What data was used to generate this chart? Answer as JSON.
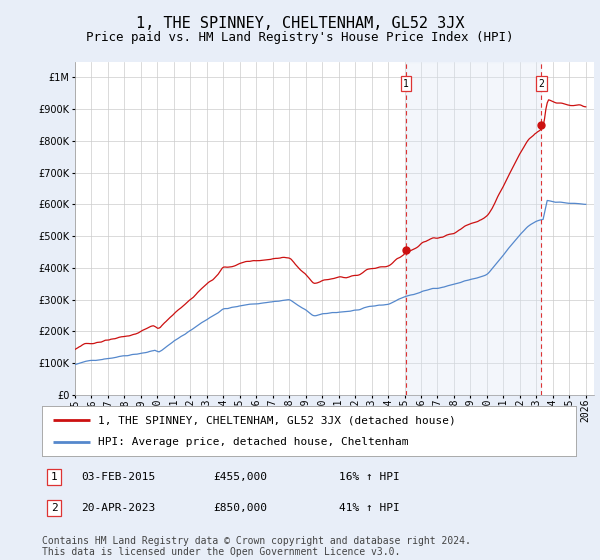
{
  "title": "1, THE SPINNEY, CHELTENHAM, GL52 3JX",
  "subtitle": "Price paid vs. HM Land Registry's House Price Index (HPI)",
  "ytick_values": [
    0,
    100000,
    200000,
    300000,
    400000,
    500000,
    600000,
    700000,
    800000,
    900000,
    1000000
  ],
  "ylim": [
    0,
    1050000
  ],
  "xlim_start": 1995.0,
  "xlim_end": 2026.5,
  "xticks": [
    1995,
    1996,
    1997,
    1998,
    1999,
    2000,
    2001,
    2002,
    2003,
    2004,
    2005,
    2006,
    2007,
    2008,
    2009,
    2010,
    2011,
    2012,
    2013,
    2014,
    2015,
    2016,
    2017,
    2018,
    2019,
    2020,
    2021,
    2022,
    2023,
    2024,
    2025,
    2026
  ],
  "hpi_color": "#5588cc",
  "price_color": "#cc1111",
  "vline_color": "#dd3333",
  "background_color": "#e8eef8",
  "plot_bg_color": "#ffffff",
  "shade_color": "#dde8f5",
  "grid_color": "#cccccc",
  "sale1_x": 2015.09,
  "sale1_y": 455000,
  "sale1_label": "1",
  "sale2_x": 2023.31,
  "sale2_y": 850000,
  "sale2_label": "2",
  "legend_line1": "1, THE SPINNEY, CHELTENHAM, GL52 3JX (detached house)",
  "legend_line2": "HPI: Average price, detached house, Cheltenham",
  "footer": "Contains HM Land Registry data © Crown copyright and database right 2024.\nThis data is licensed under the Open Government Licence v3.0.",
  "title_fontsize": 11,
  "subtitle_fontsize": 9,
  "tick_fontsize": 7,
  "legend_fontsize": 8,
  "annotation_fontsize": 8,
  "footer_fontsize": 7
}
